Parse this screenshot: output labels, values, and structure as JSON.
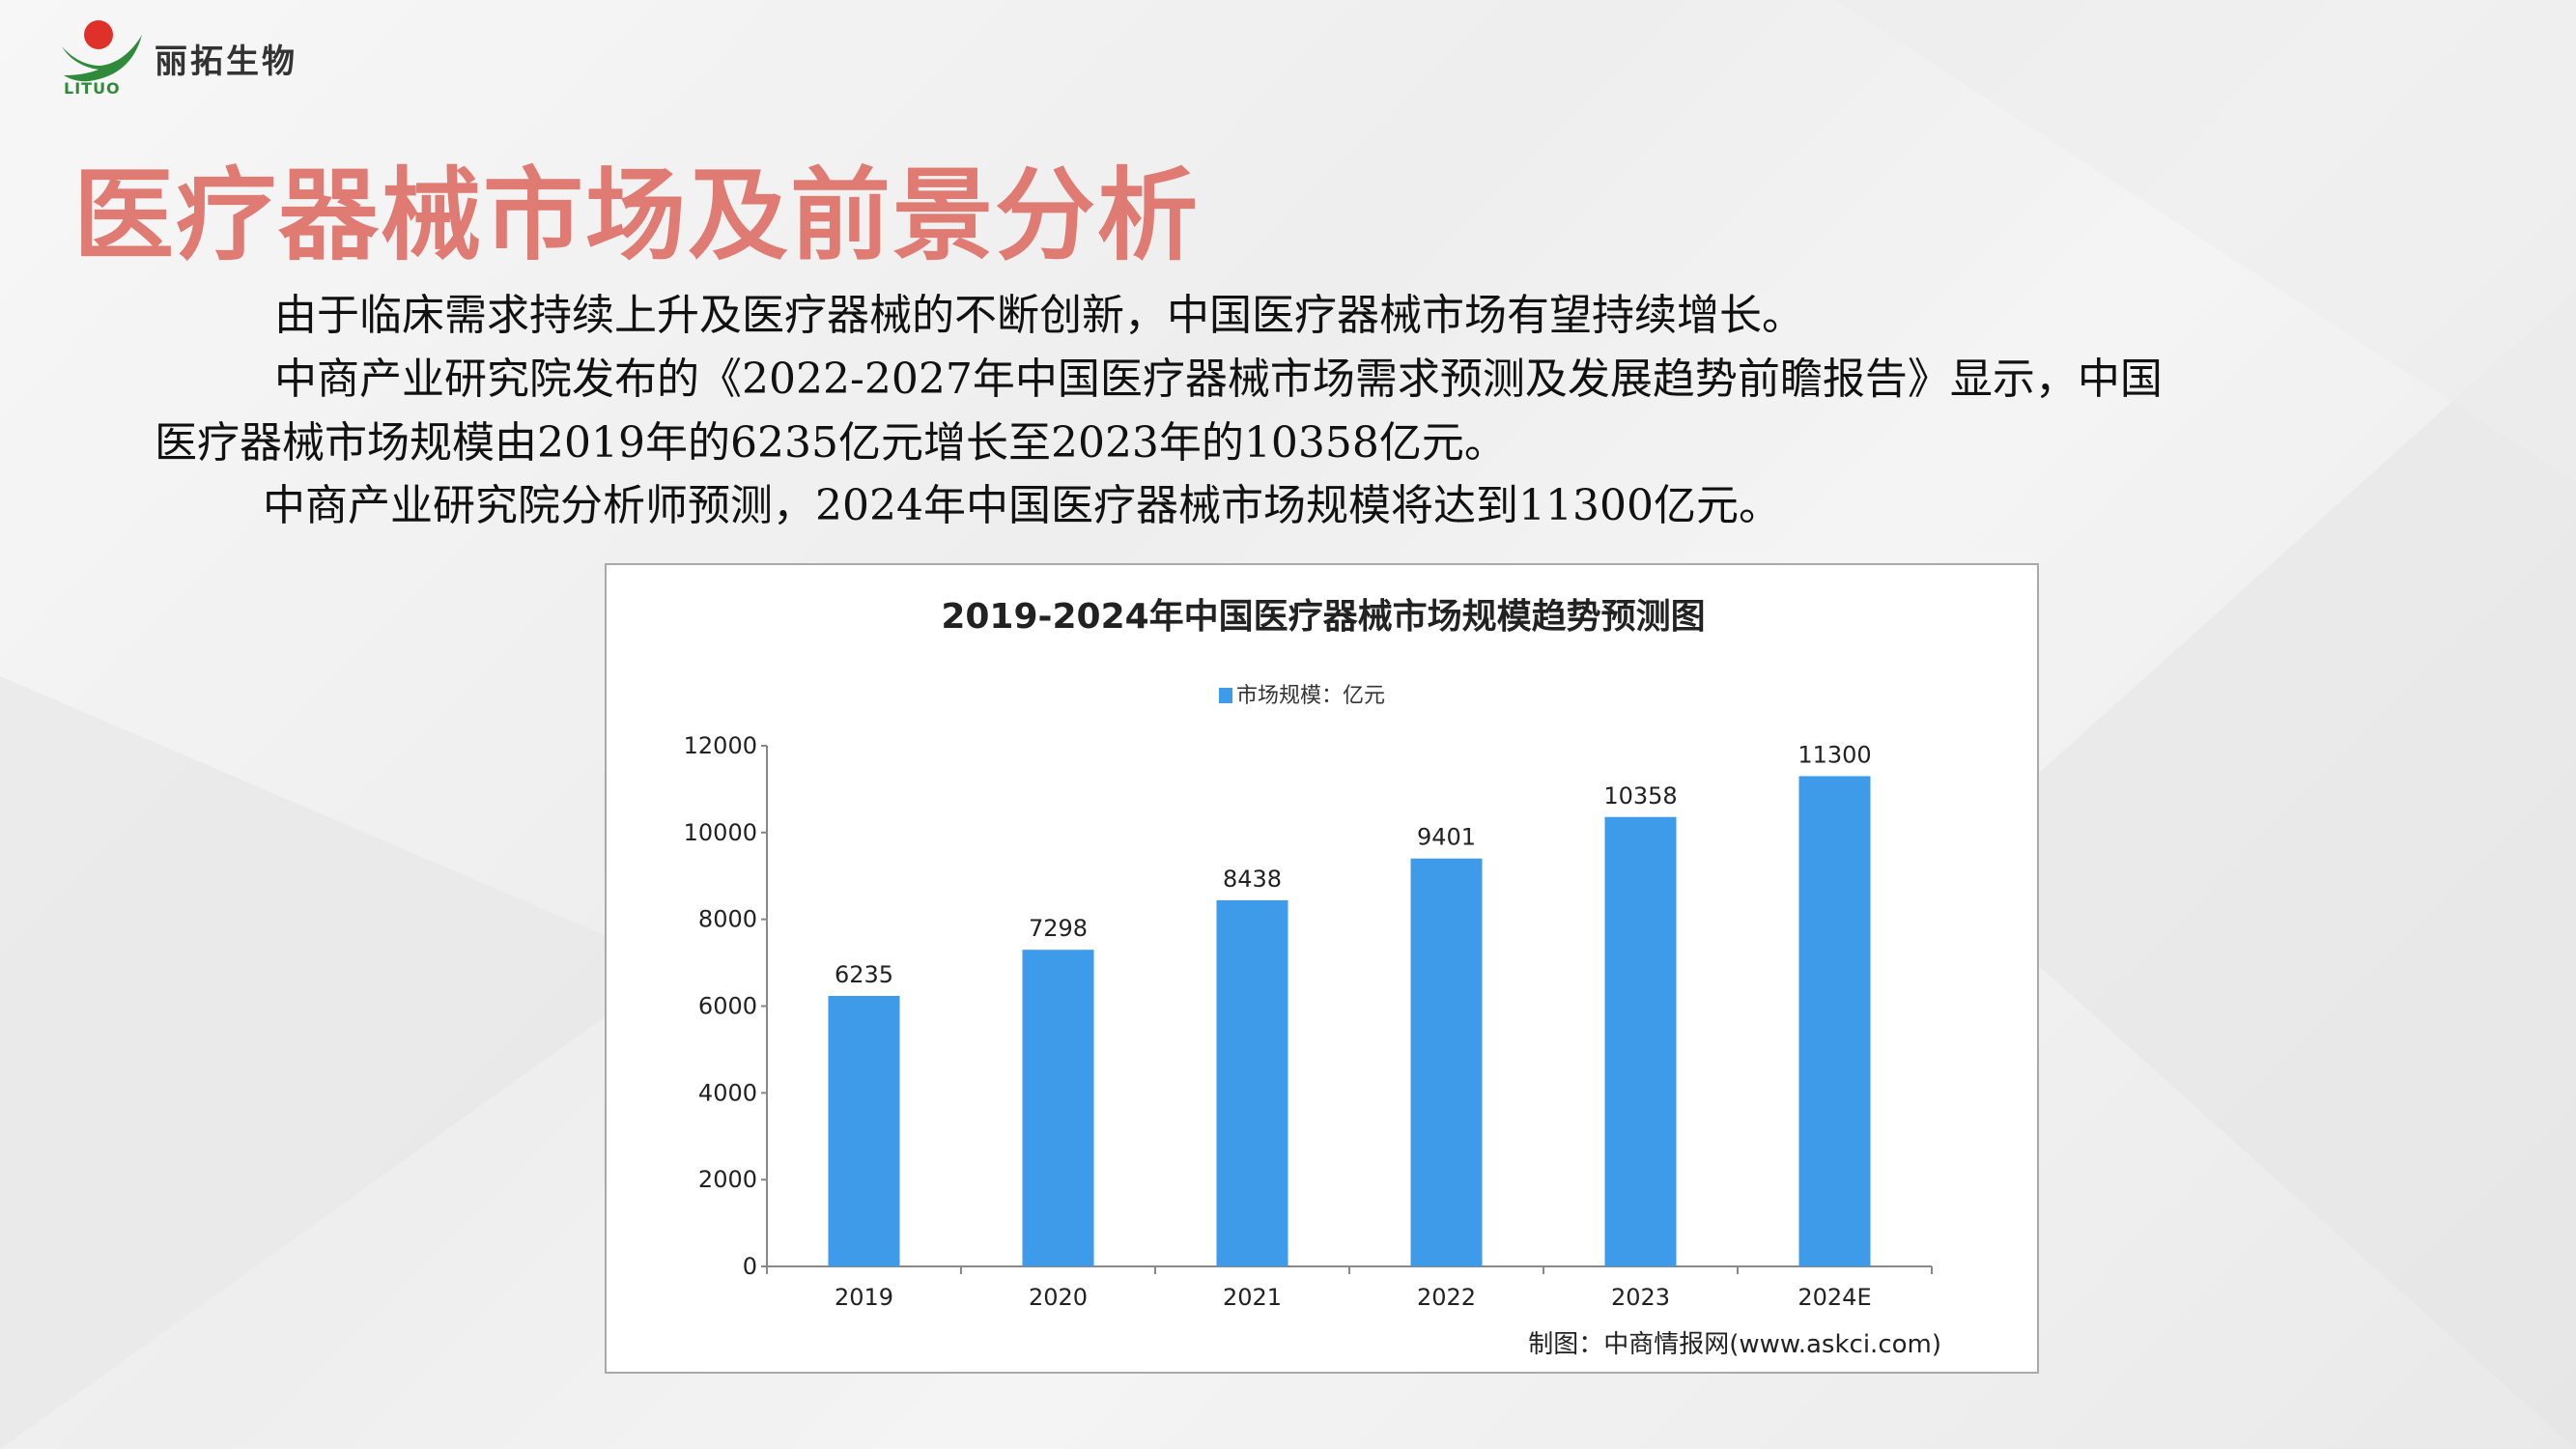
{
  "logo": {
    "name": "丽拓生物",
    "en": "LITUO"
  },
  "title": "医疗器械市场及前景分析",
  "paragraphs": [
    "由于临床需求持续上升及医疗器械的不断创新，中国医疗器械市场有望持续增长。",
    "中商产业研究院发布的《2022-2027年中国医疗器械市场需求预测及发展趋势前瞻报告》显示，中国",
    "医疗器械市场规模由2019年的6235亿元增长至2023年的10358亿元。",
    "中商产业研究院分析师预测，2024年中国医疗器械市场规模将达到11300亿元。"
  ],
  "chart_data": {
    "type": "bar",
    "title": "2019-2024年中国医疗器械市场规模趋势预测图",
    "categories": [
      "2019",
      "2020",
      "2021",
      "2022",
      "2023",
      "2024E"
    ],
    "series": [
      {
        "name": "市场规模：亿元",
        "values": [
          6235,
          7298,
          8438,
          9401,
          10358,
          11300
        ],
        "color": "#3d9be9"
      }
    ],
    "ylim": [
      0,
      12000
    ],
    "yticks": [
      "0",
      "2000",
      "4000",
      "6000",
      "8000",
      "10000",
      "12000"
    ],
    "data_labels": [
      "6235",
      "7298",
      "8438",
      "9401",
      "10358",
      "11300"
    ],
    "legend": "top",
    "grid": false,
    "source": "制图：中商情报网(www.askci.com)"
  }
}
